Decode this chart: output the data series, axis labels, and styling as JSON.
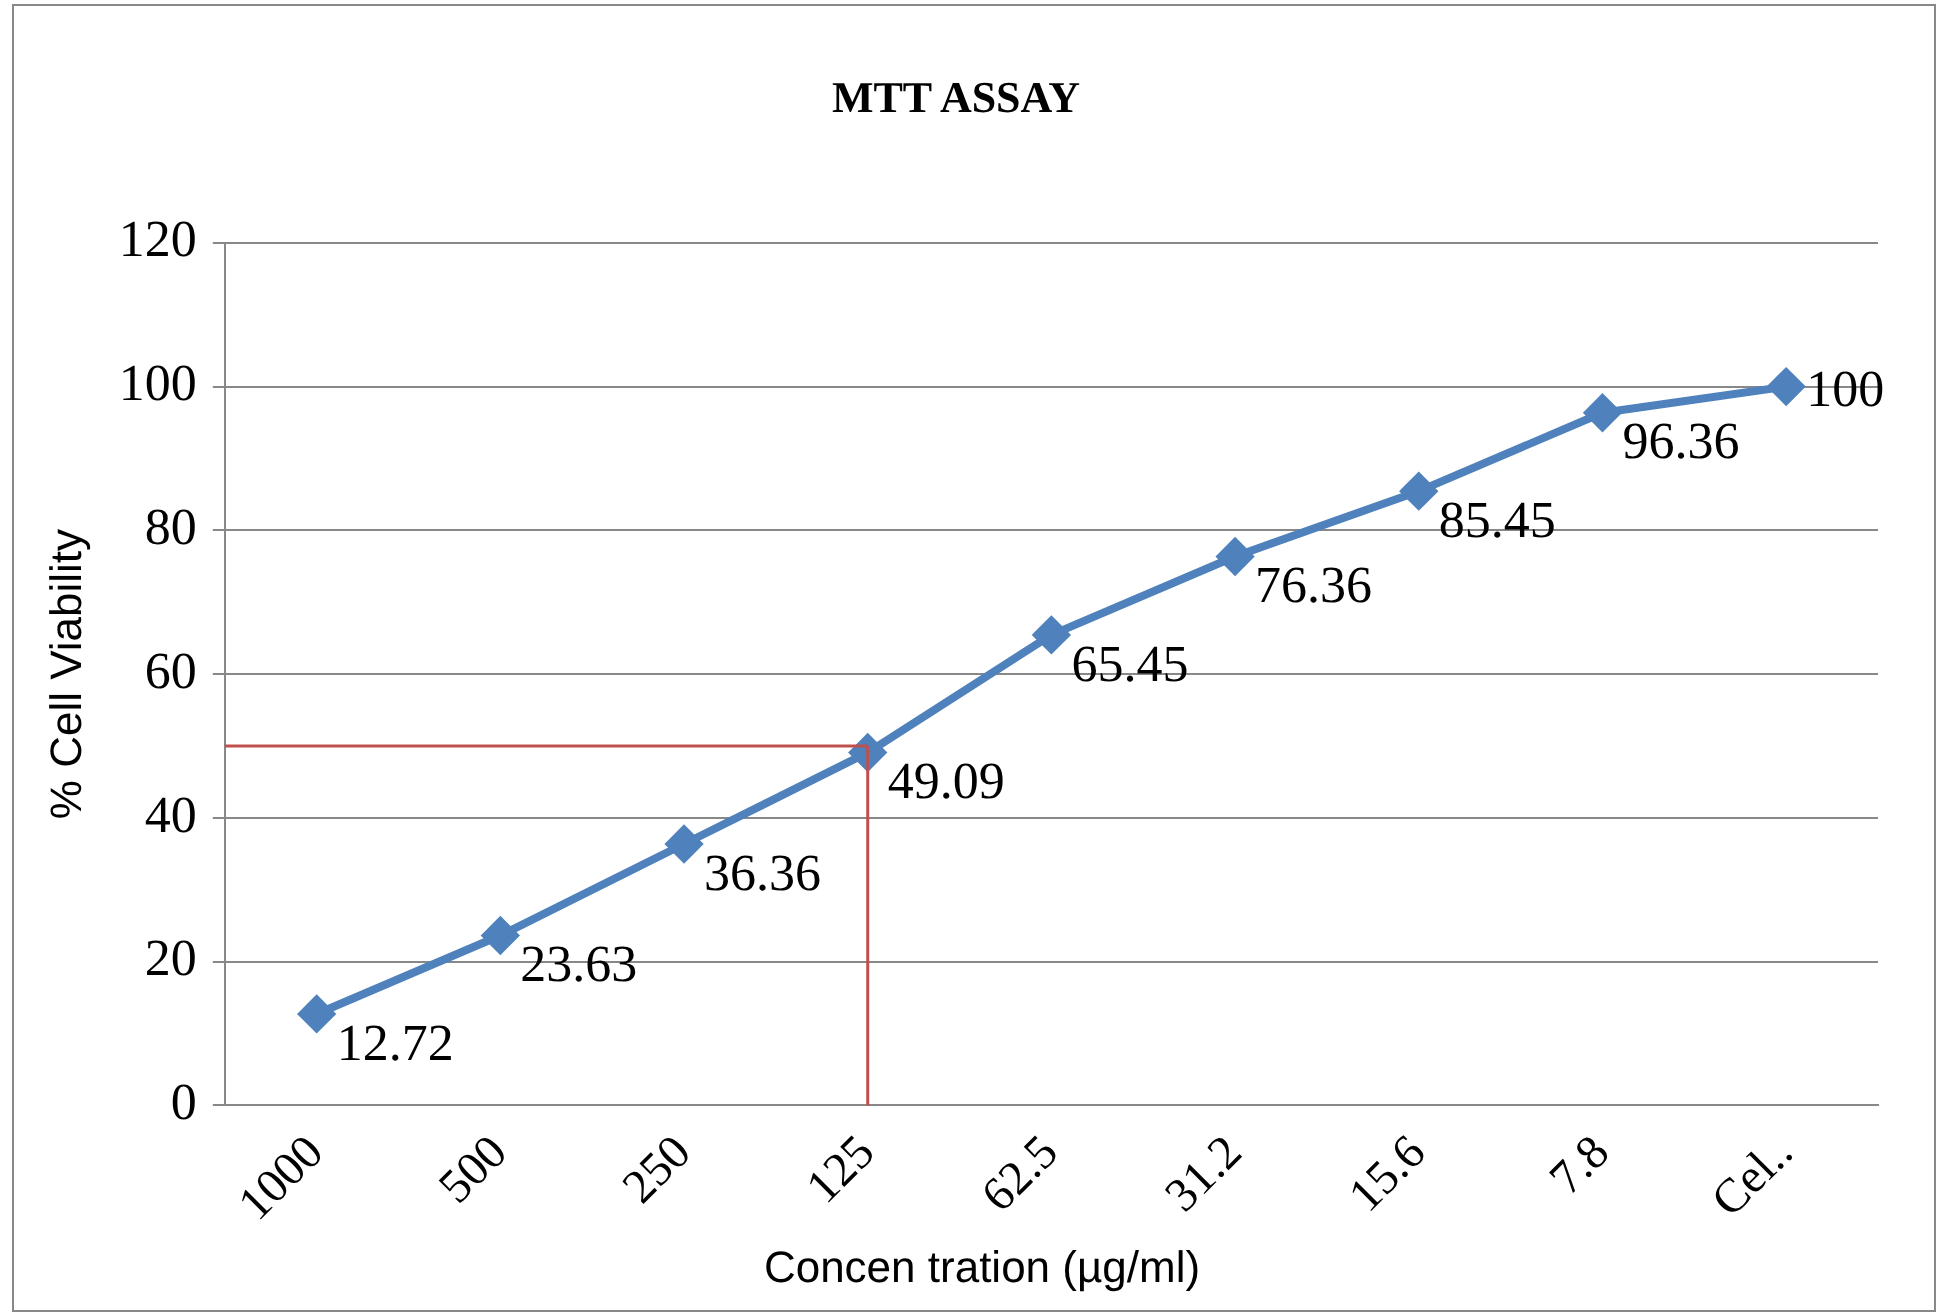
{
  "chart_data": {
    "type": "line",
    "title": "MTT ASSAY",
    "xlabel": "Concen tration (µg/ml)",
    "ylabel": "% Cell Viability",
    "categories": [
      "1000",
      "500",
      "250",
      "125",
      "62.5",
      "31.2",
      "15.6",
      "7.8",
      "Cel.."
    ],
    "values": [
      12.72,
      23.63,
      36.36,
      49.09,
      65.45,
      76.36,
      85.45,
      96.36,
      100
    ],
    "color": "#4f81bd",
    "marker": "diamond",
    "line_style": "solid",
    "data_labels": true,
    "ylim": [
      0,
      120
    ],
    "yticks": [
      0,
      20,
      40,
      60,
      80,
      100,
      120
    ],
    "grid": "y",
    "legend": false,
    "ref_lines": [
      {
        "axis": "y",
        "value": 50,
        "color": "#c0504d"
      },
      {
        "axis": "x",
        "value": "125",
        "color": "#c0504d"
      }
    ]
  }
}
